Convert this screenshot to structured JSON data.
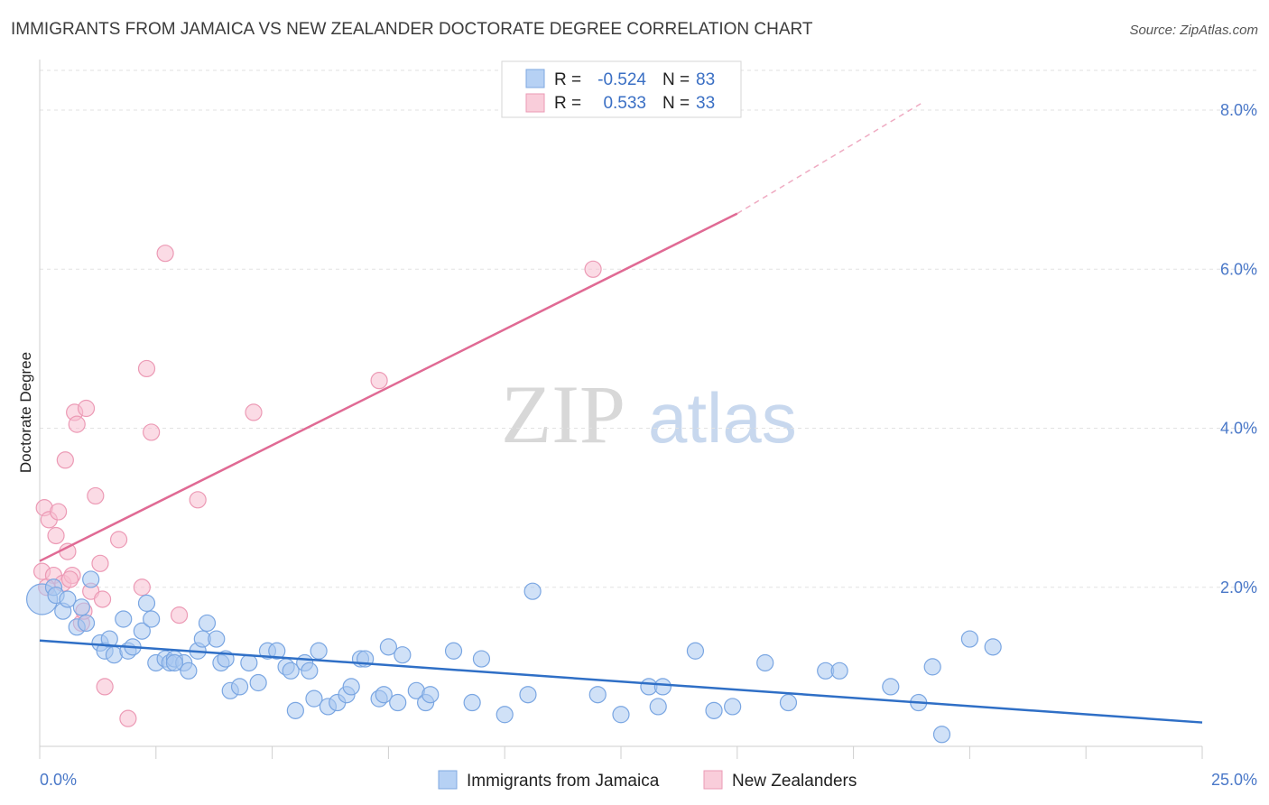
{
  "header": {
    "title": "IMMIGRANTS FROM JAMAICA VS NEW ZEALANDER DOCTORATE DEGREE CORRELATION CHART",
    "source": "Source: ZipAtlas.com"
  },
  "watermark": {
    "zip": "ZIP",
    "atlas": "atlas"
  },
  "legend": {
    "rows": [
      {
        "r_label": "R =",
        "r_value": "-0.524",
        "n_label": "N =",
        "n_value": "83"
      },
      {
        "r_label": "R =",
        "r_value": "0.533",
        "n_label": "N =",
        "n_value": "33"
      }
    ]
  },
  "chart_data": {
    "type": "scatter",
    "ylabel": "Doctorate Degree",
    "xlim": [
      0,
      25
    ],
    "ylim": [
      0,
      8.5
    ],
    "x_tick_labels": [
      {
        "value": 0,
        "label": "0.0%"
      },
      {
        "value": 25,
        "label": "25.0%"
      }
    ],
    "y_ticks": [
      {
        "value": 2,
        "label": "2.0%"
      },
      {
        "value": 4,
        "label": "4.0%"
      },
      {
        "value": 6,
        "label": "6.0%"
      },
      {
        "value": 8,
        "label": "8.0%"
      }
    ],
    "series": [
      {
        "name": "Immigrants from Jamaica",
        "color": "#8ab4ea",
        "trend": {
          "x0": 0,
          "y0": 1.33,
          "x1": 25,
          "y1": 0.3
        },
        "points": [
          [
            0.05,
            1.85
          ],
          [
            0.3,
            2.0
          ],
          [
            0.35,
            1.9
          ],
          [
            0.5,
            1.7
          ],
          [
            0.6,
            1.85
          ],
          [
            0.8,
            1.5
          ],
          [
            0.9,
            1.75
          ],
          [
            1.0,
            1.55
          ],
          [
            1.1,
            2.1
          ],
          [
            1.3,
            1.3
          ],
          [
            1.4,
            1.2
          ],
          [
            1.5,
            1.35
          ],
          [
            1.6,
            1.15
          ],
          [
            1.8,
            1.6
          ],
          [
            1.9,
            1.2
          ],
          [
            2.0,
            1.25
          ],
          [
            2.2,
            1.45
          ],
          [
            2.3,
            1.8
          ],
          [
            2.4,
            1.6
          ],
          [
            2.5,
            1.05
          ],
          [
            2.7,
            1.1
          ],
          [
            2.8,
            1.05
          ],
          [
            2.9,
            1.1
          ],
          [
            3.1,
            1.05
          ],
          [
            3.2,
            0.95
          ],
          [
            3.4,
            1.2
          ],
          [
            3.5,
            1.35
          ],
          [
            3.6,
            1.55
          ],
          [
            3.8,
            1.35
          ],
          [
            3.9,
            1.05
          ],
          [
            4.0,
            1.1
          ],
          [
            4.1,
            0.7
          ],
          [
            4.3,
            0.75
          ],
          [
            4.5,
            1.05
          ],
          [
            4.7,
            0.8
          ],
          [
            4.9,
            1.2
          ],
          [
            5.1,
            1.2
          ],
          [
            5.3,
            1.0
          ],
          [
            5.4,
            0.95
          ],
          [
            5.5,
            0.45
          ],
          [
            5.7,
            1.05
          ],
          [
            5.8,
            0.95
          ],
          [
            5.9,
            0.6
          ],
          [
            6.0,
            1.2
          ],
          [
            6.2,
            0.5
          ],
          [
            6.4,
            0.55
          ],
          [
            6.6,
            0.65
          ],
          [
            6.7,
            0.75
          ],
          [
            6.9,
            1.1
          ],
          [
            7.0,
            1.1
          ],
          [
            7.3,
            0.6
          ],
          [
            7.4,
            0.65
          ],
          [
            7.5,
            1.25
          ],
          [
            7.7,
            0.55
          ],
          [
            7.8,
            1.15
          ],
          [
            8.1,
            0.7
          ],
          [
            8.3,
            0.55
          ],
          [
            8.4,
            0.65
          ],
          [
            8.9,
            1.2
          ],
          [
            9.3,
            0.55
          ],
          [
            9.5,
            1.1
          ],
          [
            10.0,
            0.4
          ],
          [
            10.5,
            0.65
          ],
          [
            10.6,
            1.95
          ],
          [
            12.0,
            0.65
          ],
          [
            12.5,
            0.4
          ],
          [
            13.1,
            0.75
          ],
          [
            13.3,
            0.5
          ],
          [
            13.4,
            0.75
          ],
          [
            14.1,
            1.2
          ],
          [
            14.5,
            0.45
          ],
          [
            14.9,
            0.5
          ],
          [
            15.6,
            1.05
          ],
          [
            16.1,
            0.55
          ],
          [
            16.9,
            0.95
          ],
          [
            17.2,
            0.95
          ],
          [
            18.3,
            0.75
          ],
          [
            18.9,
            0.55
          ],
          [
            19.2,
            1.0
          ],
          [
            19.4,
            0.15
          ],
          [
            20.0,
            1.35
          ],
          [
            20.5,
            1.25
          ],
          [
            2.9,
            1.05
          ]
        ]
      },
      {
        "name": "New Zealanders",
        "color": "#f4a6be",
        "trend": {
          "x0": 0,
          "y0": 2.33,
          "x1": 15.0,
          "y1": 6.7,
          "dash_x1": 19.0,
          "dash_y1": 8.1
        },
        "points": [
          [
            0.05,
            2.2
          ],
          [
            0.1,
            3.0
          ],
          [
            0.2,
            2.85
          ],
          [
            0.3,
            2.15
          ],
          [
            0.35,
            2.65
          ],
          [
            0.4,
            2.95
          ],
          [
            0.5,
            2.05
          ],
          [
            0.55,
            3.6
          ],
          [
            0.6,
            2.45
          ],
          [
            0.7,
            2.15
          ],
          [
            0.75,
            4.2
          ],
          [
            0.8,
            4.05
          ],
          [
            0.9,
            1.55
          ],
          [
            0.95,
            1.7
          ],
          [
            1.0,
            4.25
          ],
          [
            1.1,
            1.95
          ],
          [
            1.2,
            3.15
          ],
          [
            1.3,
            2.3
          ],
          [
            1.35,
            1.85
          ],
          [
            1.4,
            0.75
          ],
          [
            1.7,
            2.6
          ],
          [
            1.9,
            0.35
          ],
          [
            2.2,
            2.0
          ],
          [
            2.3,
            4.75
          ],
          [
            2.4,
            3.95
          ],
          [
            2.7,
            6.2
          ],
          [
            3.0,
            1.65
          ],
          [
            3.4,
            3.1
          ],
          [
            4.6,
            4.2
          ],
          [
            7.3,
            4.6
          ],
          [
            11.9,
            6.0
          ],
          [
            0.15,
            2.0
          ],
          [
            0.65,
            2.1
          ]
        ]
      }
    ]
  }
}
